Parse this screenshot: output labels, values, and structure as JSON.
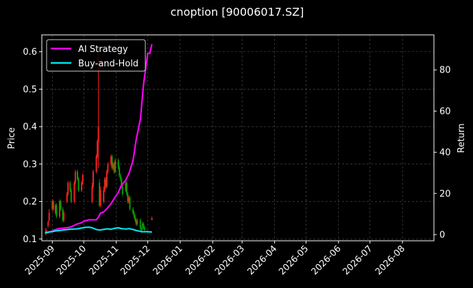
{
  "chart_data": {
    "type": "line",
    "title": "cnoption [90006017.SZ]",
    "ylabel_left": "Price",
    "ylabel_right": "Return",
    "xlabel": "",
    "x_ticks": [
      "2025-09",
      "2025-10",
      "2025-11",
      "2025-12",
      "2026-01",
      "2026-02",
      "2026-03",
      "2026-04",
      "2026-05",
      "2026-06",
      "2026-07",
      "2026-08"
    ],
    "xlim": [
      "2025-08-22",
      "2026-08-31"
    ],
    "ylim_left": [
      0.095,
      0.645
    ],
    "ylim_right": [
      -3,
      97
    ],
    "yticks_left": [
      "0.1",
      "0.2",
      "0.3",
      "0.4",
      "0.5",
      "0.6"
    ],
    "yticks_right": [
      "0",
      "20",
      "40",
      "60",
      "80"
    ],
    "grid": true,
    "legend_position": "top-left",
    "colors": {
      "background": "#000000",
      "ai_strategy": "#ff00ff",
      "buy_and_hold": "#00e5ee",
      "candle_up": "#ff2020",
      "candle_down": "#00a000",
      "grid": "#555555"
    },
    "series": [
      {
        "name": "AI Strategy",
        "axis": "right",
        "x": [
          "2025-08-25",
          "2025-08-28",
          "2025-09-01",
          "2025-09-04",
          "2025-09-08",
          "2025-09-10",
          "2025-09-15",
          "2025-09-18",
          "2025-09-22",
          "2025-09-25",
          "2025-09-29",
          "2025-10-01",
          "2025-10-06",
          "2025-10-09",
          "2025-10-13",
          "2025-10-15",
          "2025-10-17",
          "2025-10-20",
          "2025-10-23",
          "2025-10-27",
          "2025-10-30",
          "2025-11-03",
          "2025-11-06",
          "2025-11-10",
          "2025-11-13",
          "2025-11-17",
          "2025-11-20",
          "2025-11-24",
          "2025-11-27",
          "2025-12-01",
          "2025-12-03",
          "2025-12-05"
        ],
        "values": [
          0.5,
          1.0,
          1.8,
          2.4,
          3.0,
          3.0,
          3.3,
          3.6,
          4.5,
          5.2,
          5.8,
          6.5,
          7.2,
          7.2,
          7.2,
          8.5,
          10.5,
          11.0,
          12.5,
          15.0,
          17.5,
          20.5,
          24.0,
          26.5,
          29.5,
          36.0,
          46.0,
          56.0,
          73.0,
          88.0,
          88.0,
          92.5
        ]
      },
      {
        "name": "Buy-and-Hold",
        "axis": "right",
        "x": [
          "2025-08-25",
          "2025-08-28",
          "2025-09-01",
          "2025-09-04",
          "2025-09-08",
          "2025-09-11",
          "2025-09-15",
          "2025-09-18",
          "2025-09-22",
          "2025-09-25",
          "2025-09-29",
          "2025-10-02",
          "2025-10-06",
          "2025-10-09",
          "2025-10-13",
          "2025-10-16",
          "2025-10-20",
          "2025-10-23",
          "2025-10-27",
          "2025-10-30",
          "2025-11-03",
          "2025-11-06",
          "2025-11-10",
          "2025-11-13",
          "2025-11-17",
          "2025-11-20",
          "2025-11-24",
          "2025-11-27",
          "2025-12-01",
          "2025-12-03",
          "2025-12-05"
        ],
        "values": [
          1.0,
          1.2,
          1.5,
          1.8,
          2.0,
          2.2,
          2.4,
          2.6,
          2.7,
          2.8,
          3.2,
          3.5,
          3.6,
          3.3,
          2.5,
          2.2,
          2.5,
          2.8,
          2.6,
          3.0,
          3.3,
          2.9,
          2.7,
          2.9,
          2.5,
          2.0,
          1.6,
          1.4,
          1.5,
          1.3,
          1.3
        ]
      }
    ],
    "candles": {
      "axis": "left",
      "x": [
        "2025-08-26",
        "2025-08-28",
        "2025-08-29",
        "2025-09-01",
        "2025-09-02",
        "2025-09-04",
        "2025-09-05",
        "2025-09-08",
        "2025-09-09",
        "2025-09-11",
        "2025-09-12",
        "2025-09-15",
        "2025-09-16",
        "2025-09-18",
        "2025-09-19",
        "2025-09-22",
        "2025-09-23",
        "2025-09-25",
        "2025-09-26",
        "2025-09-29",
        "2025-09-30",
        "2025-10-09",
        "2025-10-10",
        "2025-10-13",
        "2025-10-14",
        "2025-10-15",
        "2025-10-16",
        "2025-10-17",
        "2025-10-20",
        "2025-10-21",
        "2025-10-22",
        "2025-10-23",
        "2025-10-24",
        "2025-10-27",
        "2025-10-28",
        "2025-10-29",
        "2025-10-30",
        "2025-10-31",
        "2025-11-03",
        "2025-11-04",
        "2025-11-05",
        "2025-11-06",
        "2025-11-07",
        "2025-11-10",
        "2025-11-11",
        "2025-11-12",
        "2025-11-13",
        "2025-11-14",
        "2025-11-17",
        "2025-11-18",
        "2025-11-19",
        "2025-11-20",
        "2025-11-21",
        "2025-11-24",
        "2025-11-25",
        "2025-11-26",
        "2025-11-27",
        "2025-11-28",
        "2025-12-05"
      ],
      "open": [
        0.115,
        0.135,
        0.15,
        0.18,
        0.2,
        0.17,
        0.19,
        0.16,
        0.2,
        0.18,
        0.15,
        0.2,
        0.22,
        0.25,
        0.23,
        0.2,
        0.25,
        0.28,
        0.26,
        0.23,
        0.25,
        0.2,
        0.24,
        0.28,
        0.32,
        0.36,
        0.25,
        0.19,
        0.2,
        0.23,
        0.26,
        0.24,
        0.28,
        0.3,
        0.32,
        0.29,
        0.3,
        0.28,
        0.31,
        0.29,
        0.27,
        0.26,
        0.24,
        0.23,
        0.25,
        0.22,
        0.2,
        0.21,
        0.18,
        0.17,
        0.16,
        0.15,
        0.14,
        0.15,
        0.13,
        0.14,
        0.14,
        0.13,
        0.15
      ],
      "close": [
        0.125,
        0.145,
        0.17,
        0.2,
        0.18,
        0.19,
        0.16,
        0.2,
        0.18,
        0.15,
        0.17,
        0.22,
        0.25,
        0.23,
        0.2,
        0.25,
        0.28,
        0.26,
        0.23,
        0.25,
        0.27,
        0.24,
        0.28,
        0.32,
        0.36,
        0.4,
        0.19,
        0.23,
        0.23,
        0.26,
        0.24,
        0.28,
        0.3,
        0.32,
        0.29,
        0.3,
        0.28,
        0.31,
        0.29,
        0.27,
        0.26,
        0.24,
        0.22,
        0.25,
        0.22,
        0.2,
        0.21,
        0.18,
        0.17,
        0.16,
        0.15,
        0.14,
        0.15,
        0.13,
        0.12,
        0.135,
        0.13,
        0.125,
        0.155
      ],
      "high": [
        0.13,
        0.15,
        0.18,
        0.205,
        0.205,
        0.195,
        0.195,
        0.205,
        0.205,
        0.185,
        0.175,
        0.225,
        0.255,
        0.255,
        0.235,
        0.255,
        0.285,
        0.285,
        0.265,
        0.255,
        0.275,
        0.25,
        0.285,
        0.325,
        0.365,
        0.6,
        0.26,
        0.24,
        0.24,
        0.265,
        0.265,
        0.285,
        0.305,
        0.325,
        0.325,
        0.305,
        0.305,
        0.315,
        0.315,
        0.295,
        0.275,
        0.265,
        0.245,
        0.255,
        0.255,
        0.225,
        0.215,
        0.215,
        0.185,
        0.175,
        0.165,
        0.155,
        0.155,
        0.155,
        0.135,
        0.145,
        0.145,
        0.135,
        0.16
      ],
      "low": [
        0.11,
        0.13,
        0.145,
        0.175,
        0.175,
        0.165,
        0.155,
        0.155,
        0.175,
        0.145,
        0.145,
        0.195,
        0.215,
        0.225,
        0.195,
        0.195,
        0.245,
        0.255,
        0.225,
        0.225,
        0.245,
        0.195,
        0.235,
        0.275,
        0.315,
        0.29,
        0.185,
        0.185,
        0.195,
        0.225,
        0.235,
        0.235,
        0.275,
        0.295,
        0.285,
        0.285,
        0.275,
        0.275,
        0.285,
        0.265,
        0.255,
        0.235,
        0.215,
        0.225,
        0.215,
        0.195,
        0.195,
        0.175,
        0.165,
        0.155,
        0.145,
        0.135,
        0.135,
        0.125,
        0.115,
        0.125,
        0.125,
        0.12,
        0.15
      ]
    }
  }
}
